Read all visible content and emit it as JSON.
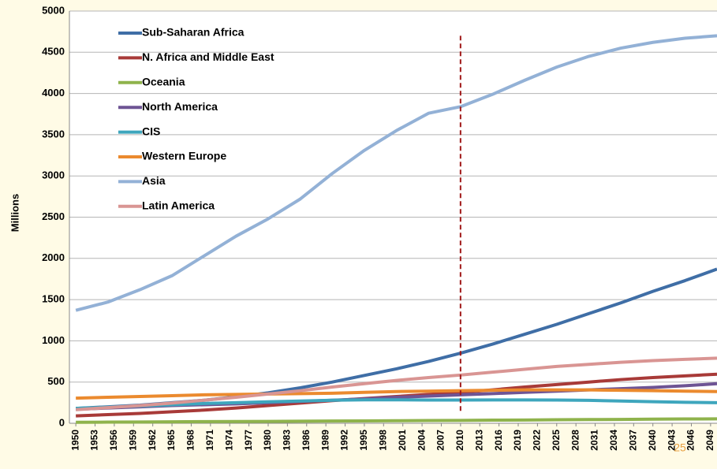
{
  "chart_data": {
    "type": "line",
    "y_label": "Millions",
    "page_number": "25",
    "x": [
      1950,
      1955,
      1960,
      1965,
      1970,
      1975,
      1980,
      1985,
      1990,
      1995,
      2000,
      2005,
      2010,
      2015,
      2020,
      2025,
      2030,
      2035,
      2040,
      2045,
      2050
    ],
    "xlim": [
      1949,
      2050
    ],
    "xticks": [
      1950,
      1953,
      1956,
      1959,
      1962,
      1965,
      1968,
      1971,
      1974,
      1977,
      1980,
      1983,
      1986,
      1989,
      1992,
      1995,
      1998,
      2001,
      2004,
      2007,
      2010,
      2013,
      2016,
      2019,
      2022,
      2025,
      2028,
      2031,
      2034,
      2037,
      2040,
      2043,
      2046,
      2049
    ],
    "ylim": [
      0,
      5000
    ],
    "yticks": [
      0,
      500,
      1000,
      1500,
      2000,
      2500,
      3000,
      3500,
      4000,
      4500,
      5000
    ],
    "grid": true,
    "legend": "upper left",
    "reference_line": {
      "x": 2010,
      "y_range": [
        150,
        4700
      ],
      "color": "#a01818"
    },
    "series": [
      {
        "name": "Sub-Saharan Africa",
        "color": "#3f6ea6",
        "values": [
          180,
          200,
          220,
          250,
          280,
          320,
          370,
          430,
          500,
          580,
          660,
          750,
          850,
          960,
          1080,
          1200,
          1330,
          1460,
          1600,
          1730,
          1870
        ]
      },
      {
        "name": "N. Africa and Middle East",
        "color": "#a83a38",
        "values": [
          90,
          105,
          120,
          140,
          160,
          185,
          215,
          245,
          275,
          300,
          325,
          350,
          375,
          405,
          440,
          470,
          500,
          530,
          555,
          575,
          595
        ]
      },
      {
        "name": "Oceania",
        "color": "#8fb34c",
        "values": [
          12,
          14,
          16,
          18,
          20,
          22,
          23,
          25,
          27,
          29,
          31,
          33,
          35,
          38,
          40,
          43,
          45,
          47,
          50,
          52,
          54
        ]
      },
      {
        "name": "North America",
        "color": "#6e5494",
        "values": [
          170,
          185,
          200,
          215,
          225,
          235,
          250,
          265,
          280,
          295,
          315,
          330,
          345,
          360,
          375,
          390,
          405,
          420,
          435,
          455,
          480
        ]
      },
      {
        "name": "CIS",
        "color": "#3ea6bd",
        "values": [
          180,
          195,
          210,
          225,
          240,
          250,
          260,
          270,
          280,
          285,
          285,
          282,
          282,
          283,
          283,
          282,
          278,
          270,
          262,
          255,
          250
        ]
      },
      {
        "name": "Western Europe",
        "color": "#eb8a2e",
        "values": [
          305,
          315,
          325,
          335,
          345,
          350,
          355,
          360,
          365,
          375,
          385,
          390,
          395,
          400,
          405,
          405,
          405,
          400,
          395,
          390,
          385
        ]
      },
      {
        "name": "Asia",
        "color": "#93b1d6",
        "values": [
          1370,
          1470,
          1620,
          1790,
          2030,
          2270,
          2480,
          2720,
          3030,
          3310,
          3550,
          3760,
          3840,
          3990,
          4160,
          4320,
          4450,
          4550,
          4620,
          4670,
          4700
        ]
      },
      {
        "name": "Latin America",
        "color": "#d99593",
        "values": [
          165,
          190,
          215,
          245,
          280,
          315,
          355,
          395,
          440,
          480,
          520,
          555,
          585,
          620,
          655,
          690,
          715,
          740,
          760,
          775,
          790
        ]
      }
    ]
  }
}
